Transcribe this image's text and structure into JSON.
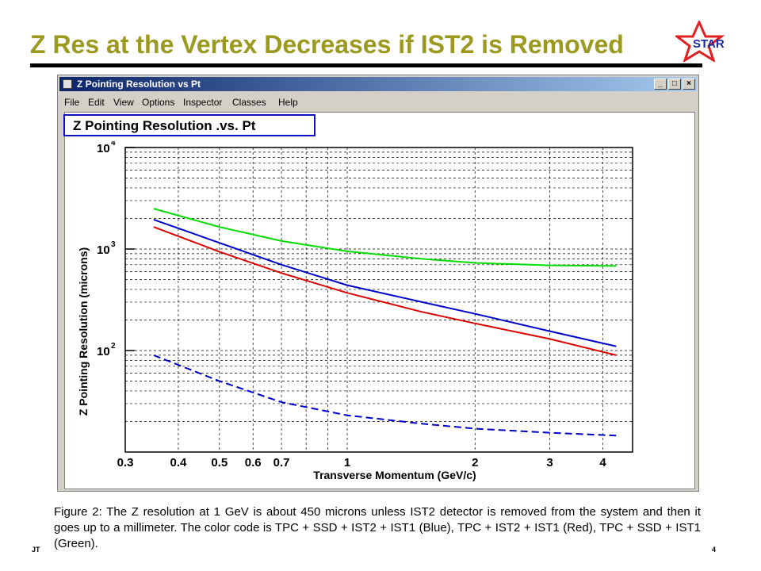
{
  "slide": {
    "title": "Z Res at the Vertex Decreases if IST2 is Removed",
    "logo_text": "STAR",
    "footer_left": "JT",
    "page_number": "4",
    "caption": "Figure 2:  The Z resolution at 1 GeV is about 450 microns unless IST2 detector is removed from the system and then it goes up to a millimeter.  The color code is TPC + SSD + IST2 + IST1 (Blue), TPC + IST2 + IST1 (Red),  TPC + SSD + IST1 (Green).",
    "title_color": "#9c9a1e"
  },
  "window": {
    "title": "Z Pointing Resolution vs Pt",
    "minimize": "_",
    "maximize": "□",
    "close": "×",
    "menu": [
      "File",
      "Edit",
      "View",
      "Options",
      "Inspector",
      "Classes",
      "Help"
    ]
  },
  "chart_data": {
    "type": "line",
    "title": "Z Pointing Resolution .vs. Pt",
    "xlabel": "Transverse Momentum (GeV/c)",
    "ylabel": "Z Pointing Resolution (microns)",
    "xscale": "log",
    "yscale": "log",
    "xlim": [
      0.3,
      4.7
    ],
    "ylim": [
      10,
      10000
    ],
    "grid": true,
    "x_tick_labels": [
      "0.3",
      "0.4",
      "0.5",
      "0.6",
      "0.7",
      "1",
      "2",
      "3",
      "4"
    ],
    "x_tick_values": [
      0.3,
      0.4,
      0.5,
      0.6,
      0.7,
      1,
      2,
      3,
      4
    ],
    "y_tick_labels": [
      {
        "base": "10",
        "exp": "2",
        "value": 100
      },
      {
        "base": "10",
        "exp": "3",
        "value": 1000
      },
      {
        "base": "10",
        "exp": "4",
        "value": 10000
      }
    ],
    "series": [
      {
        "color": "#00dd00",
        "style": "solid",
        "x": [
          0.35,
          0.5,
          0.7,
          1.0,
          1.5,
          2.0,
          3.0,
          4.3
        ],
        "y": [
          2500,
          1650,
          1200,
          950,
          800,
          730,
          690,
          680
        ]
      },
      {
        "color": "#0000cc",
        "style": "solid",
        "x": [
          0.35,
          0.5,
          0.7,
          1.0,
          1.5,
          2.0,
          3.0,
          4.3
        ],
        "y": [
          1950,
          1150,
          700,
          440,
          300,
          230,
          155,
          110
        ]
      },
      {
        "color": "#dd0000",
        "style": "solid",
        "x": [
          0.35,
          0.5,
          0.7,
          1.0,
          1.5,
          2.0,
          3.0,
          4.3
        ],
        "y": [
          1650,
          940,
          580,
          370,
          240,
          185,
          130,
          90
        ]
      },
      {
        "color": "#0000cc",
        "style": "dashed",
        "x": [
          0.35,
          0.5,
          0.7,
          1.0,
          1.5,
          2.0,
          3.0,
          4.3
        ],
        "y": [
          90,
          50,
          31,
          23,
          19,
          17,
          15.5,
          14.5
        ]
      }
    ]
  }
}
